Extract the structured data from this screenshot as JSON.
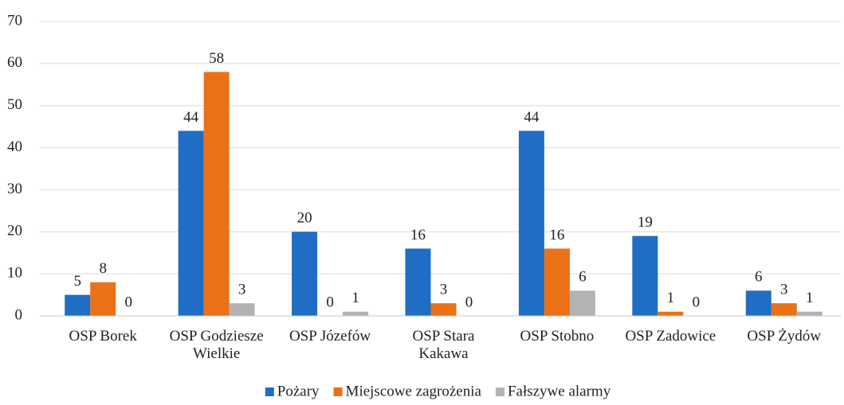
{
  "chart_data": {
    "type": "bar",
    "categories": [
      "OSP Borek",
      "OSP Godziesze Wielkie",
      "OSP Józefów",
      "OSP Stara Kakawa",
      "OSP Stobno",
      "OSP Zadowice",
      "OSP Żydów"
    ],
    "series": [
      {
        "name": "Pożary",
        "color": "#1f6dc4",
        "values": [
          5,
          44,
          20,
          16,
          44,
          19,
          6
        ]
      },
      {
        "name": "Miejscowe zagrożenia",
        "color": "#ea7117",
        "values": [
          8,
          58,
          0,
          3,
          16,
          1,
          3
        ]
      },
      {
        "name": "Fałszywe alarmy",
        "color": "#b3b3b3",
        "values": [
          0,
          3,
          1,
          0,
          6,
          0,
          1
        ]
      }
    ],
    "ylim": [
      0,
      70
    ],
    "yticks": [
      0,
      10,
      20,
      30,
      40,
      50,
      60,
      70
    ],
    "grid": true,
    "legend": "bottom"
  }
}
